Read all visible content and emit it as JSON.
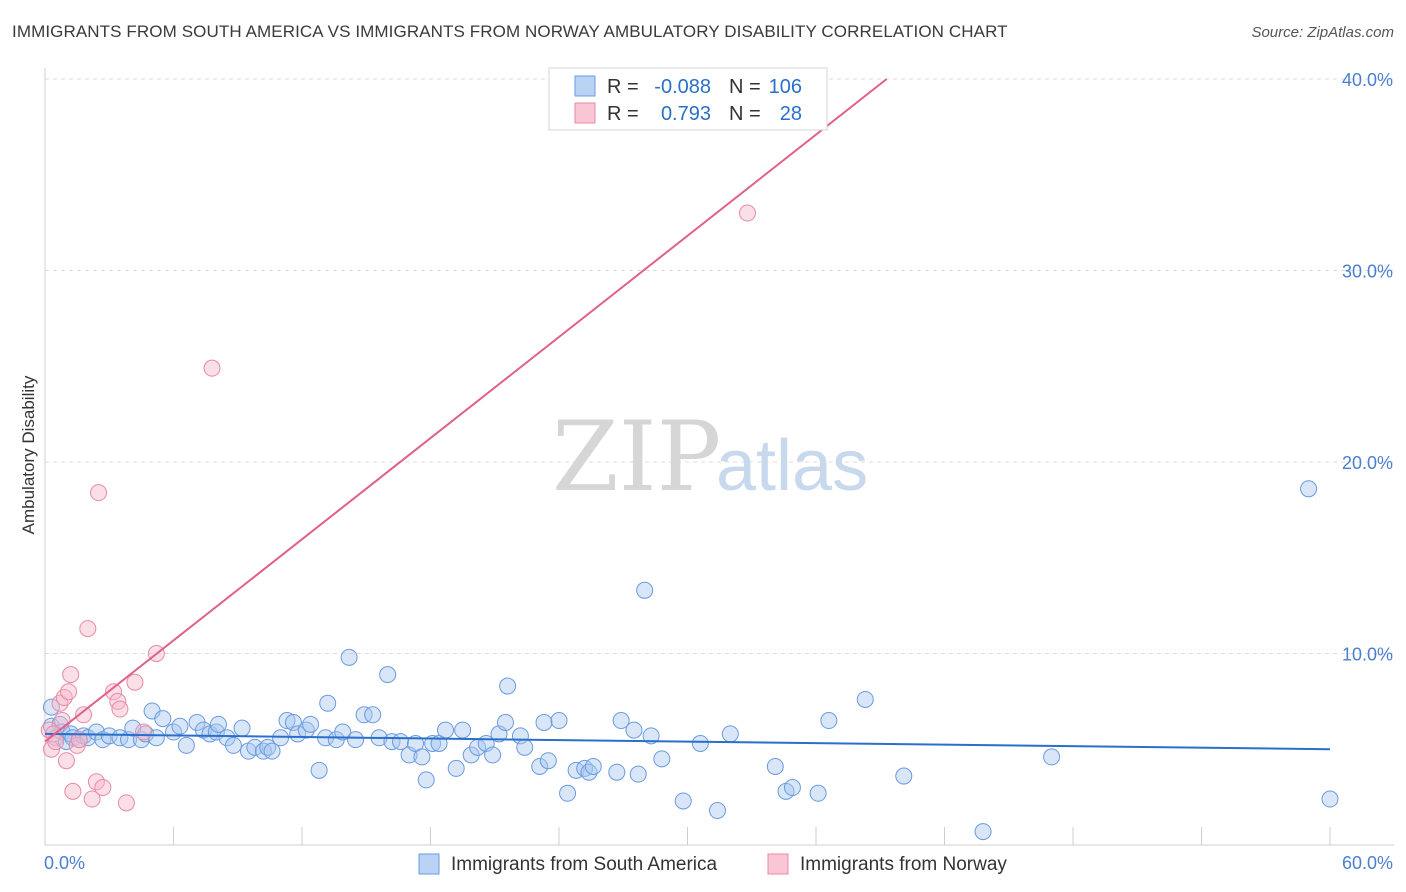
{
  "title": "IMMIGRANTS FROM SOUTH AMERICA VS IMMIGRANTS FROM NORWAY AMBULATORY DISABILITY CORRELATION CHART",
  "source": "Source: ZipAtlas.com",
  "watermark": {
    "zip": "ZIP",
    "atlas": "atlas"
  },
  "colors": {
    "blue_fill": "#a9c7f0",
    "blue_stroke": "#6a9be0",
    "blue_line": "#2a6fc9",
    "pink_fill": "#f6b8ca",
    "pink_stroke": "#e88aa7",
    "pink_line": "#e0608a",
    "value_text": "#2a6fc9",
    "grid": "#dcdcdc"
  },
  "legend": {
    "r_label": "R =",
    "n_label": "N =",
    "rows": [
      {
        "r": "-0.088",
        "n": "106",
        "color": "blue"
      },
      {
        "r": "0.793",
        "n": "28",
        "color": "pink"
      }
    ]
  },
  "chart_data": {
    "type": "scatter",
    "title": "IMMIGRANTS FROM SOUTH AMERICA VS IMMIGRANTS FROM NORWAY AMBULATORY DISABILITY CORRELATION CHART",
    "xlabel": "",
    "ylabel": "Ambulatory Disability",
    "xlim": [
      0,
      60
    ],
    "ylim": [
      0,
      40
    ],
    "x_tick_labels": [
      "0.0%",
      "60.0%"
    ],
    "y_ticks": [
      10,
      20,
      30,
      40
    ],
    "y_tick_labels": [
      "10.0%",
      "20.0%",
      "30.0%",
      "40.0%"
    ],
    "grid": true,
    "legend_position": "top-center",
    "series": [
      {
        "name": "Immigrants from South America",
        "color": "blue",
        "trend": {
          "x": [
            0,
            60
          ],
          "y": [
            5.8,
            5.0
          ]
        },
        "points": [
          [
            0.3,
            7.2
          ],
          [
            0.3,
            6.2
          ],
          [
            0.5,
            5.6
          ],
          [
            0.7,
            6.3
          ],
          [
            0.8,
            5.9
          ],
          [
            1.0,
            5.4
          ],
          [
            1.2,
            5.8
          ],
          [
            1.3,
            5.6
          ],
          [
            1.6,
            5.5
          ],
          [
            1.8,
            5.7
          ],
          [
            2.0,
            5.6
          ],
          [
            2.4,
            5.9
          ],
          [
            2.7,
            5.5
          ],
          [
            3.0,
            5.7
          ],
          [
            3.5,
            5.6
          ],
          [
            3.9,
            5.5
          ],
          [
            4.1,
            6.1
          ],
          [
            4.5,
            5.5
          ],
          [
            4.7,
            5.8
          ],
          [
            5.0,
            7.0
          ],
          [
            5.2,
            5.6
          ],
          [
            5.5,
            6.6
          ],
          [
            6.0,
            5.9
          ],
          [
            6.3,
            6.2
          ],
          [
            6.6,
            5.2
          ],
          [
            7.1,
            6.4
          ],
          [
            7.4,
            6.0
          ],
          [
            7.7,
            5.8
          ],
          [
            8.0,
            5.9
          ],
          [
            8.1,
            6.3
          ],
          [
            8.5,
            5.6
          ],
          [
            8.8,
            5.2
          ],
          [
            9.2,
            6.1
          ],
          [
            9.5,
            4.9
          ],
          [
            9.8,
            5.1
          ],
          [
            10.2,
            4.9
          ],
          [
            10.4,
            5.1
          ],
          [
            10.6,
            4.9
          ],
          [
            11.0,
            5.6
          ],
          [
            11.3,
            6.5
          ],
          [
            11.6,
            6.4
          ],
          [
            11.8,
            5.8
          ],
          [
            12.2,
            6.0
          ],
          [
            12.4,
            6.3
          ],
          [
            12.8,
            3.9
          ],
          [
            13.1,
            5.6
          ],
          [
            13.2,
            7.4
          ],
          [
            13.6,
            5.5
          ],
          [
            13.9,
            5.9
          ],
          [
            14.2,
            9.8
          ],
          [
            14.5,
            5.5
          ],
          [
            14.9,
            6.8
          ],
          [
            15.3,
            6.8
          ],
          [
            15.6,
            5.6
          ],
          [
            16.0,
            8.9
          ],
          [
            16.2,
            5.4
          ],
          [
            16.6,
            5.4
          ],
          [
            17.0,
            4.7
          ],
          [
            17.3,
            5.3
          ],
          [
            17.6,
            4.6
          ],
          [
            17.8,
            3.4
          ],
          [
            18.1,
            5.3
          ],
          [
            18.4,
            5.3
          ],
          [
            18.7,
            6.0
          ],
          [
            19.2,
            4.0
          ],
          [
            19.5,
            6.0
          ],
          [
            19.9,
            4.7
          ],
          [
            20.2,
            5.1
          ],
          [
            20.6,
            5.3
          ],
          [
            20.9,
            4.7
          ],
          [
            21.2,
            5.8
          ],
          [
            21.5,
            6.4
          ],
          [
            21.6,
            8.3
          ],
          [
            22.2,
            5.7
          ],
          [
            22.4,
            5.1
          ],
          [
            23.1,
            4.1
          ],
          [
            23.3,
            6.4
          ],
          [
            23.5,
            4.4
          ],
          [
            24.0,
            6.5
          ],
          [
            24.4,
            2.7
          ],
          [
            24.8,
            3.9
          ],
          [
            25.2,
            4.0
          ],
          [
            25.4,
            3.8
          ],
          [
            25.6,
            4.1
          ],
          [
            26.7,
            3.8
          ],
          [
            26.9,
            6.5
          ],
          [
            27.5,
            6.0
          ],
          [
            27.7,
            3.7
          ],
          [
            28.0,
            13.3
          ],
          [
            28.3,
            5.7
          ],
          [
            28.8,
            4.5
          ],
          [
            29.8,
            2.3
          ],
          [
            30.6,
            5.3
          ],
          [
            31.4,
            1.8
          ],
          [
            32.0,
            5.8
          ],
          [
            34.1,
            4.1
          ],
          [
            34.6,
            2.8
          ],
          [
            34.9,
            3.0
          ],
          [
            36.1,
            2.7
          ],
          [
            36.6,
            6.5
          ],
          [
            38.3,
            7.6
          ],
          [
            40.1,
            3.6
          ],
          [
            43.8,
            0.7
          ],
          [
            47.0,
            4.6
          ],
          [
            59.0,
            18.6
          ],
          [
            60.0,
            2.4
          ]
        ]
      },
      {
        "name": "Immigrants from Norway",
        "color": "pink",
        "trend": {
          "x": [
            0,
            39.3
          ],
          "y": [
            5.4,
            40.0
          ]
        },
        "points": [
          [
            0.2,
            6.0
          ],
          [
            0.3,
            5.0
          ],
          [
            0.4,
            5.8
          ],
          [
            0.5,
            5.4
          ],
          [
            0.7,
            7.4
          ],
          [
            0.8,
            6.5
          ],
          [
            0.9,
            7.7
          ],
          [
            1.0,
            4.4
          ],
          [
            1.1,
            8.0
          ],
          [
            1.2,
            8.9
          ],
          [
            1.3,
            2.8
          ],
          [
            1.5,
            5.2
          ],
          [
            1.6,
            5.5
          ],
          [
            1.8,
            6.8
          ],
          [
            2.0,
            11.3
          ],
          [
            2.2,
            2.4
          ],
          [
            2.4,
            3.3
          ],
          [
            2.5,
            18.4
          ],
          [
            2.7,
            3.0
          ],
          [
            3.2,
            8.0
          ],
          [
            3.4,
            7.5
          ],
          [
            3.5,
            7.1
          ],
          [
            3.8,
            2.2
          ],
          [
            4.2,
            8.5
          ],
          [
            4.6,
            5.9
          ],
          [
            5.2,
            10.0
          ],
          [
            7.8,
            24.9
          ],
          [
            32.8,
            33.0
          ]
        ]
      }
    ]
  },
  "bottom_legend": [
    {
      "label": "Immigrants from South America",
      "color": "blue"
    },
    {
      "label": "Immigrants from Norway",
      "color": "pink"
    }
  ]
}
